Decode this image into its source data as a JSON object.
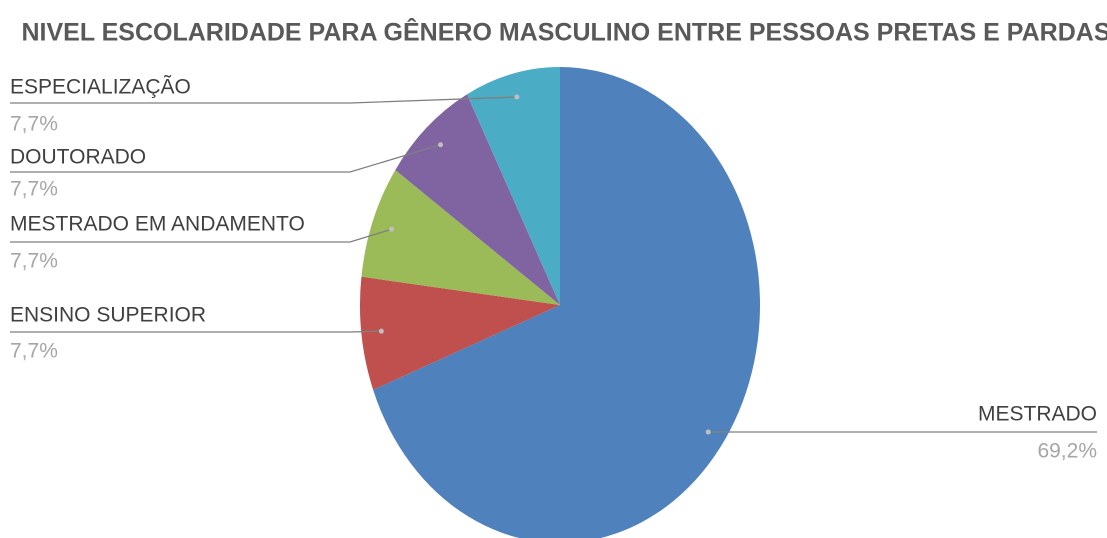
{
  "chart_data": {
    "type": "pie",
    "title": "NIVEL ESCOLARIDADE PARA GÊNERO MASCULINO ENTRE PESSOAS PRETAS E PARDAS",
    "categories": [
      "MESTRADO",
      "ENSINO SUPERIOR",
      "MESTRADO EM ANDAMENTO",
      "DOUTORADO",
      "ESPECIALIZAÇÃO"
    ],
    "values": [
      69.2,
      7.7,
      7.7,
      7.7,
      7.7
    ],
    "value_labels": [
      "69,2%",
      "7,7%",
      "7,7%",
      "7,7%",
      "7,7%"
    ],
    "colors": [
      "#4f81bd",
      "#c0504d",
      "#9bbb59",
      "#8064a2",
      "#4bacc6"
    ]
  }
}
